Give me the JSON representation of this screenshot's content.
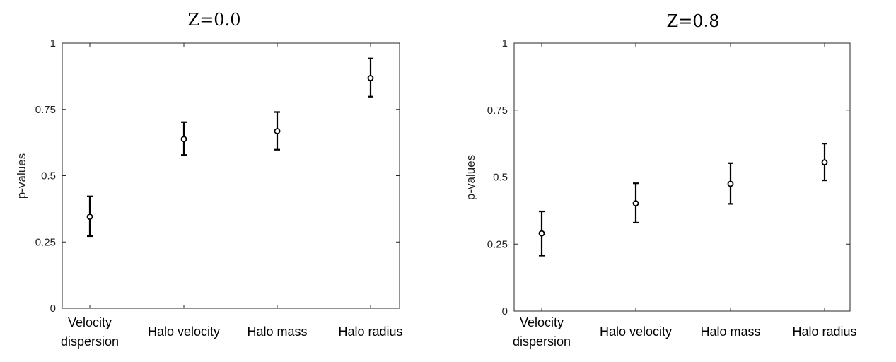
{
  "chart_data": [
    {
      "type": "scatter",
      "title": "Z=0.0",
      "xlabel": "",
      "ylabel": "p-values",
      "ylim": [
        0,
        1
      ],
      "yticks": [
        "0",
        "0.25",
        "0.5",
        "0.75",
        "1"
      ],
      "categories": [
        [
          "Velocity",
          "dispersion"
        ],
        [
          "Halo velocity"
        ],
        [
          "Halo mass"
        ],
        [
          "Halo radius"
        ]
      ],
      "values": [
        0.345,
        0.638,
        0.668,
        0.868
      ],
      "err_low": [
        0.272,
        0.578,
        0.598,
        0.798
      ],
      "err_high": [
        0.422,
        0.702,
        0.74,
        0.942
      ],
      "grid": false
    },
    {
      "type": "scatter",
      "title": "Z=0.8",
      "xlabel": "",
      "ylabel": "p-values",
      "ylim": [
        0,
        1
      ],
      "yticks": [
        "0",
        "0.25",
        "0.5",
        "0.75",
        "1"
      ],
      "categories": [
        [
          "Velocity",
          "dispersion"
        ],
        [
          "Halo velocity"
        ],
        [
          "Halo mass"
        ],
        [
          "Halo radius"
        ]
      ],
      "values": [
        0.29,
        0.402,
        0.475,
        0.555
      ],
      "err_low": [
        0.207,
        0.33,
        0.4,
        0.488
      ],
      "err_high": [
        0.372,
        0.477,
        0.552,
        0.625
      ],
      "grid": false
    }
  ]
}
